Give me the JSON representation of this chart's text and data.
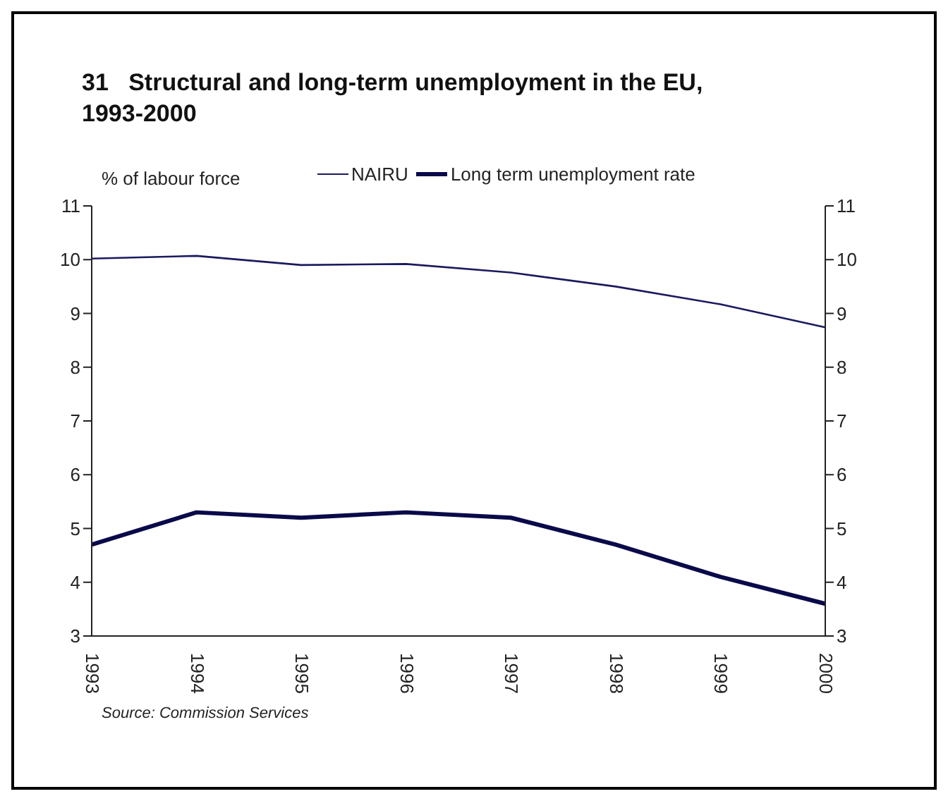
{
  "chart_data": {
    "type": "line",
    "title": "31   Structural and long-term unemployment in the EU, 1993-2000",
    "ylabel": "% of labour force",
    "categories": [
      "1993",
      "1994",
      "1995",
      "1996",
      "1997",
      "1998",
      "1999",
      "2000"
    ],
    "series": [
      {
        "name": "NAIRU",
        "color": "#1a1a5e",
        "values": [
          10.02,
          10.07,
          9.9,
          9.92,
          9.76,
          9.5,
          9.17,
          8.74
        ]
      },
      {
        "name": "Long term unemployment rate",
        "color": "#0a0a4a",
        "values": [
          4.7,
          5.3,
          5.2,
          5.3,
          5.2,
          4.7,
          4.1,
          3.6
        ]
      }
    ],
    "ylim": [
      3,
      11
    ],
    "yticks": [
      3,
      4,
      5,
      6,
      7,
      8,
      9,
      10,
      11
    ],
    "y2lim": [
      3,
      11
    ],
    "y2ticks": [
      3,
      4,
      5,
      6,
      7,
      8,
      9,
      10,
      11
    ],
    "grid": false,
    "legend": "top",
    "marker": "none",
    "line_style": "solid",
    "annotations": [
      "Source: Commission Services"
    ]
  }
}
